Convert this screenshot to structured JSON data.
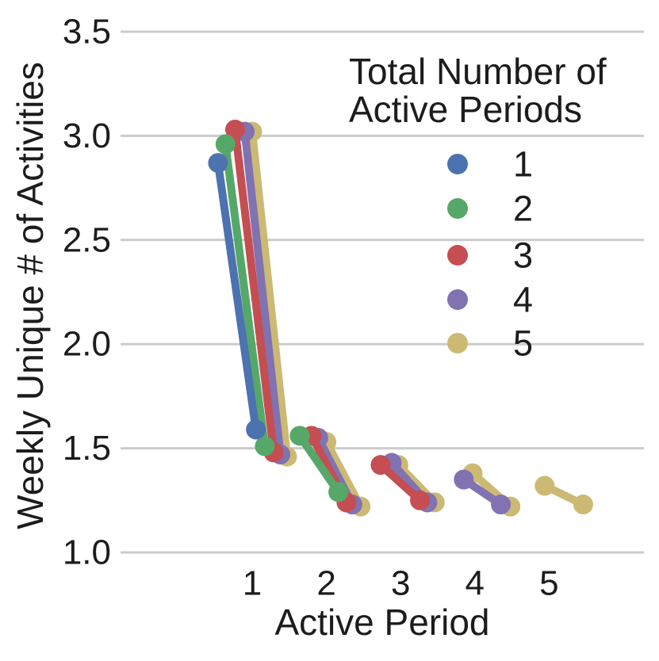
{
  "chart_data": {
    "type": "line",
    "subtype": "dodged-dumbbell-pointplot",
    "title": "",
    "xlabel": "Active Period",
    "ylabel": "Weekly Unique # of Activities",
    "x_ticks": [
      1,
      2,
      3,
      4,
      5
    ],
    "x_tick_labels": [
      "1",
      "2",
      "3",
      "4",
      "5"
    ],
    "y_ticks": [
      1.0,
      1.5,
      2.0,
      2.5,
      3.0,
      3.5
    ],
    "y_tick_labels": [
      "1.0",
      "1.5",
      "2.0",
      "2.5",
      "3.0",
      "3.5"
    ],
    "xlim": [
      -0.77,
      6.26
    ],
    "ylim": [
      1.0,
      3.5
    ],
    "grid": "horizontal-only",
    "legend": {
      "title_line1": "Total Number of",
      "title_line2": "Active Periods",
      "position": "upper-right",
      "entries": [
        "1",
        "2",
        "3",
        "4",
        "5"
      ]
    },
    "series": [
      {
        "name": "1",
        "color": "#4C72B0",
        "segments": [
          {
            "period": 1,
            "x": [
              0.54,
              1.05
            ],
            "y": [
              2.87,
              1.59
            ]
          }
        ]
      },
      {
        "name": "2",
        "color": "#55A868",
        "segments": [
          {
            "period": 1,
            "x": [
              0.64,
              1.17
            ],
            "y": [
              2.96,
              1.51
            ]
          },
          {
            "period": 2,
            "x": [
              1.64,
              2.16
            ],
            "y": [
              1.56,
              1.29
            ]
          }
        ]
      },
      {
        "name": "3",
        "color": "#C44E52",
        "segments": [
          {
            "period": 1,
            "x": [
              0.77,
              1.29
            ],
            "y": [
              3.03,
              1.48
            ]
          },
          {
            "period": 2,
            "x": [
              1.8,
              2.27
            ],
            "y": [
              1.56,
              1.24
            ]
          },
          {
            "period": 3,
            "x": [
              2.73,
              3.26
            ],
            "y": [
              1.42,
              1.25
            ]
          }
        ]
      },
      {
        "name": "4",
        "color": "#8172B2",
        "segments": [
          {
            "period": 1,
            "x": [
              0.9,
              1.38
            ],
            "y": [
              3.02,
              1.47
            ]
          },
          {
            "period": 2,
            "x": [
              1.89,
              2.35
            ],
            "y": [
              1.55,
              1.23
            ]
          },
          {
            "period": 3,
            "x": [
              2.88,
              3.36
            ],
            "y": [
              1.43,
              1.24
            ]
          },
          {
            "period": 4,
            "x": [
              3.85,
              4.35
            ],
            "y": [
              1.35,
              1.23
            ]
          }
        ]
      },
      {
        "name": "5",
        "color": "#CCB974",
        "segments": [
          {
            "period": 1,
            "x": [
              1.0,
              1.47
            ],
            "y": [
              3.02,
              1.46
            ]
          },
          {
            "period": 2,
            "x": [
              2.0,
              2.46
            ],
            "y": [
              1.53,
              1.22
            ]
          },
          {
            "period": 3,
            "x": [
              2.97,
              3.46
            ],
            "y": [
              1.42,
              1.24
            ]
          },
          {
            "period": 4,
            "x": [
              3.97,
              4.48
            ],
            "y": [
              1.38,
              1.22
            ]
          },
          {
            "period": 5,
            "x": [
              4.94,
              5.46
            ],
            "y": [
              1.32,
              1.23
            ]
          }
        ]
      }
    ]
  },
  "style": {
    "background": "#ffffff",
    "grid_color": "#cccccc",
    "text_color": "#1c1c1c"
  }
}
